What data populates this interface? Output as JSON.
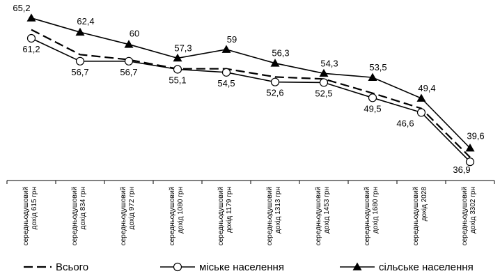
{
  "chart_data": {
    "type": "line",
    "title": "",
    "xlabel": "",
    "ylabel": "",
    "ylim": [
      35,
      66
    ],
    "grid": false,
    "legend_position": "bottom",
    "categories": [
      [
        "середньодушовий",
        "дохід 615 грн"
      ],
      [
        "середньодушовий",
        "дохід 834 грн"
      ],
      [
        "середньодушовий",
        "дохід 972 грн"
      ],
      [
        "середньодушовий",
        "дохід 1080 грн"
      ],
      [
        "середньодушовий",
        "дохід 1179 грн"
      ],
      [
        "середньодушовий",
        "дохід 1313 грн"
      ],
      [
        "середньодушовий",
        "дохід 1453 грн"
      ],
      [
        "середньодушовий",
        "дохід 1680 грн"
      ],
      [
        "середньодушовий",
        "дохід 2028"
      ],
      [
        "середньодушовий",
        "дохід 3302 грн"
      ]
    ],
    "series": [
      {
        "name": "Всього",
        "style": "dashed",
        "values": [
          62.9,
          58.0,
          57.0,
          55.2,
          55.2,
          53.6,
          53.2,
          50.4,
          47.4,
          37.8
        ],
        "labels": []
      },
      {
        "name": "міське населення",
        "style": "circle",
        "values": [
          61.2,
          56.7,
          56.7,
          55.1,
          54.5,
          52.6,
          52.5,
          49.5,
          46.6,
          36.9
        ],
        "labels": [
          "61,2",
          "56,7",
          "56,7",
          "55,1",
          "54,5",
          "52,6",
          "52,5",
          "49,5",
          "46,6",
          "36,9"
        ]
      },
      {
        "name": "сільське населення",
        "style": "triangle",
        "values": [
          65.2,
          62.4,
          60,
          57.3,
          59,
          56.3,
          54.3,
          53.5,
          49.4,
          39.6
        ],
        "labels": [
          "65,2",
          "62,4",
          "60",
          "57,3",
          "59",
          "56,3",
          "54,3",
          "53,5",
          "49,4",
          "39,6"
        ]
      }
    ]
  }
}
